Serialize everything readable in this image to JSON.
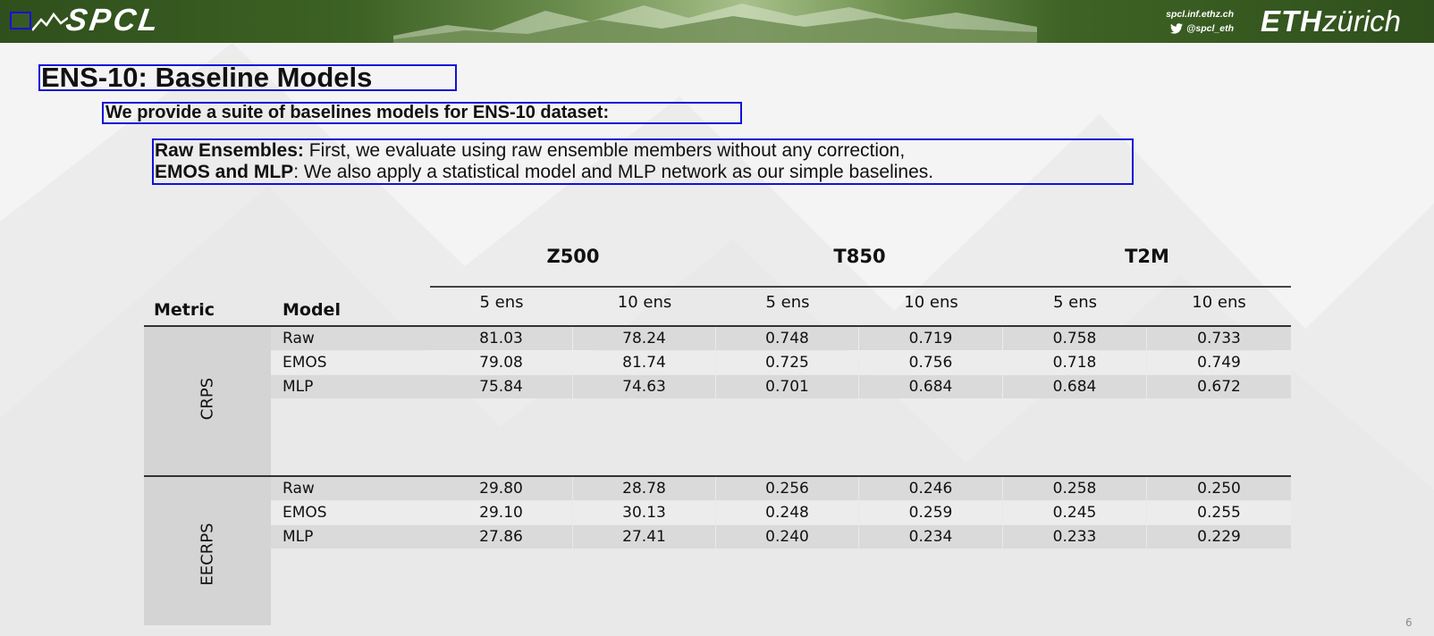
{
  "header": {
    "wordmark": "SPCL",
    "website": "spcl.inf.ethz.ch",
    "twitter_handle": "@spcl_eth",
    "eth_bold": "ETH",
    "eth_light": "zürich",
    "colors": {
      "bar_dark": "#2f4f1c",
      "bar_light": "#a7c08a",
      "focus_border": "#1212d8"
    }
  },
  "slide": {
    "title": "ENS-10: Baseline Models",
    "subtitle": "We provide a suite of baselines models for ENS-10 dataset:",
    "bullets": [
      {
        "bold": "Raw Ensembles:",
        "text": " First, we evaluate using raw ensemble members without any correction,"
      },
      {
        "bold": "EMOS and MLP",
        "text": ": We also apply a statistical model and MLP network as our simple baselines."
      }
    ],
    "page_number": "6"
  },
  "table": {
    "metric_header": "Metric",
    "model_header": "Model",
    "groups": [
      "Z500",
      "T850",
      "T2M"
    ],
    "subcolumns": [
      "5 ens",
      "10 ens",
      "5 ens",
      "10 ens",
      "5 ens",
      "10 ens"
    ],
    "sections": [
      {
        "metric": "CRPS",
        "rows": [
          {
            "model": "Raw",
            "values": [
              "81.03",
              "78.24",
              "0.748",
              "0.719",
              "0.758",
              "0.733"
            ]
          },
          {
            "model": "EMOS",
            "values": [
              "79.08",
              "81.74",
              "0.725",
              "0.756",
              "0.718",
              "0.749"
            ]
          },
          {
            "model": "MLP",
            "values": [
              "75.84",
              "74.63",
              "0.701",
              "0.684",
              "0.684",
              "0.672"
            ]
          }
        ]
      },
      {
        "metric": "EECRPS",
        "rows": [
          {
            "model": "Raw",
            "values": [
              "29.80",
              "28.78",
              "0.256",
              "0.246",
              "0.258",
              "0.250"
            ]
          },
          {
            "model": "EMOS",
            "values": [
              "29.10",
              "30.13",
              "0.248",
              "0.259",
              "0.245",
              "0.255"
            ]
          },
          {
            "model": "MLP",
            "values": [
              "27.86",
              "27.41",
              "0.240",
              "0.234",
              "0.233",
              "0.229"
            ]
          }
        ]
      }
    ]
  }
}
